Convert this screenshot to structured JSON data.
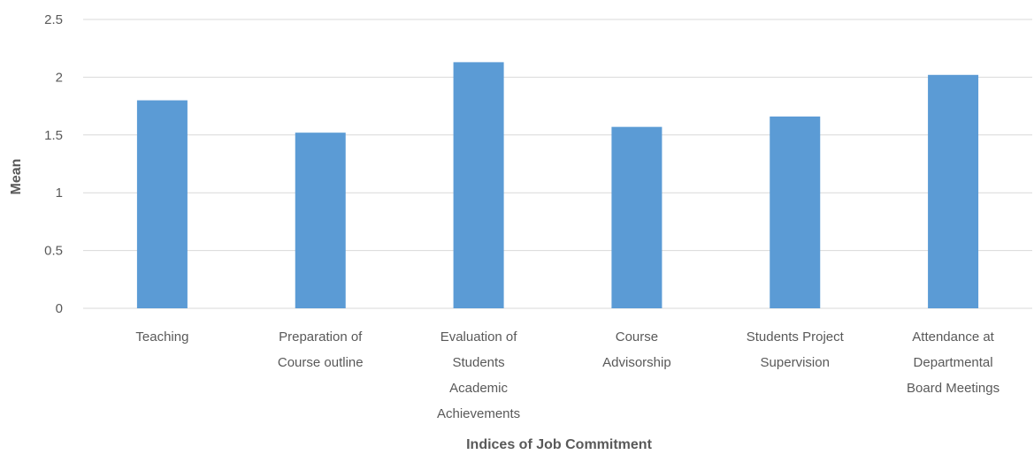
{
  "chart_data": {
    "type": "bar",
    "title": "",
    "xlabel": "Indices of Job Commitment",
    "ylabel": "Mean",
    "ylim": [
      0,
      2.5
    ],
    "yticks": [
      "0",
      "0.5",
      "1",
      "1.5",
      "2",
      "2.5"
    ],
    "grid": true,
    "legend": "none",
    "bar_color": "#5b9bd5",
    "categories": [
      [
        "Teaching"
      ],
      [
        "Preparation of",
        "Course outline"
      ],
      [
        "Evaluation of",
        "Students",
        "Academic",
        "Achievements"
      ],
      [
        "Course",
        "Advisorship"
      ],
      [
        "Students Project",
        "Supervision"
      ],
      [
        "Attendance at",
        "Departmental",
        "Board Meetings"
      ]
    ],
    "values": [
      1.8,
      1.52,
      2.13,
      1.57,
      1.66,
      2.02
    ]
  }
}
